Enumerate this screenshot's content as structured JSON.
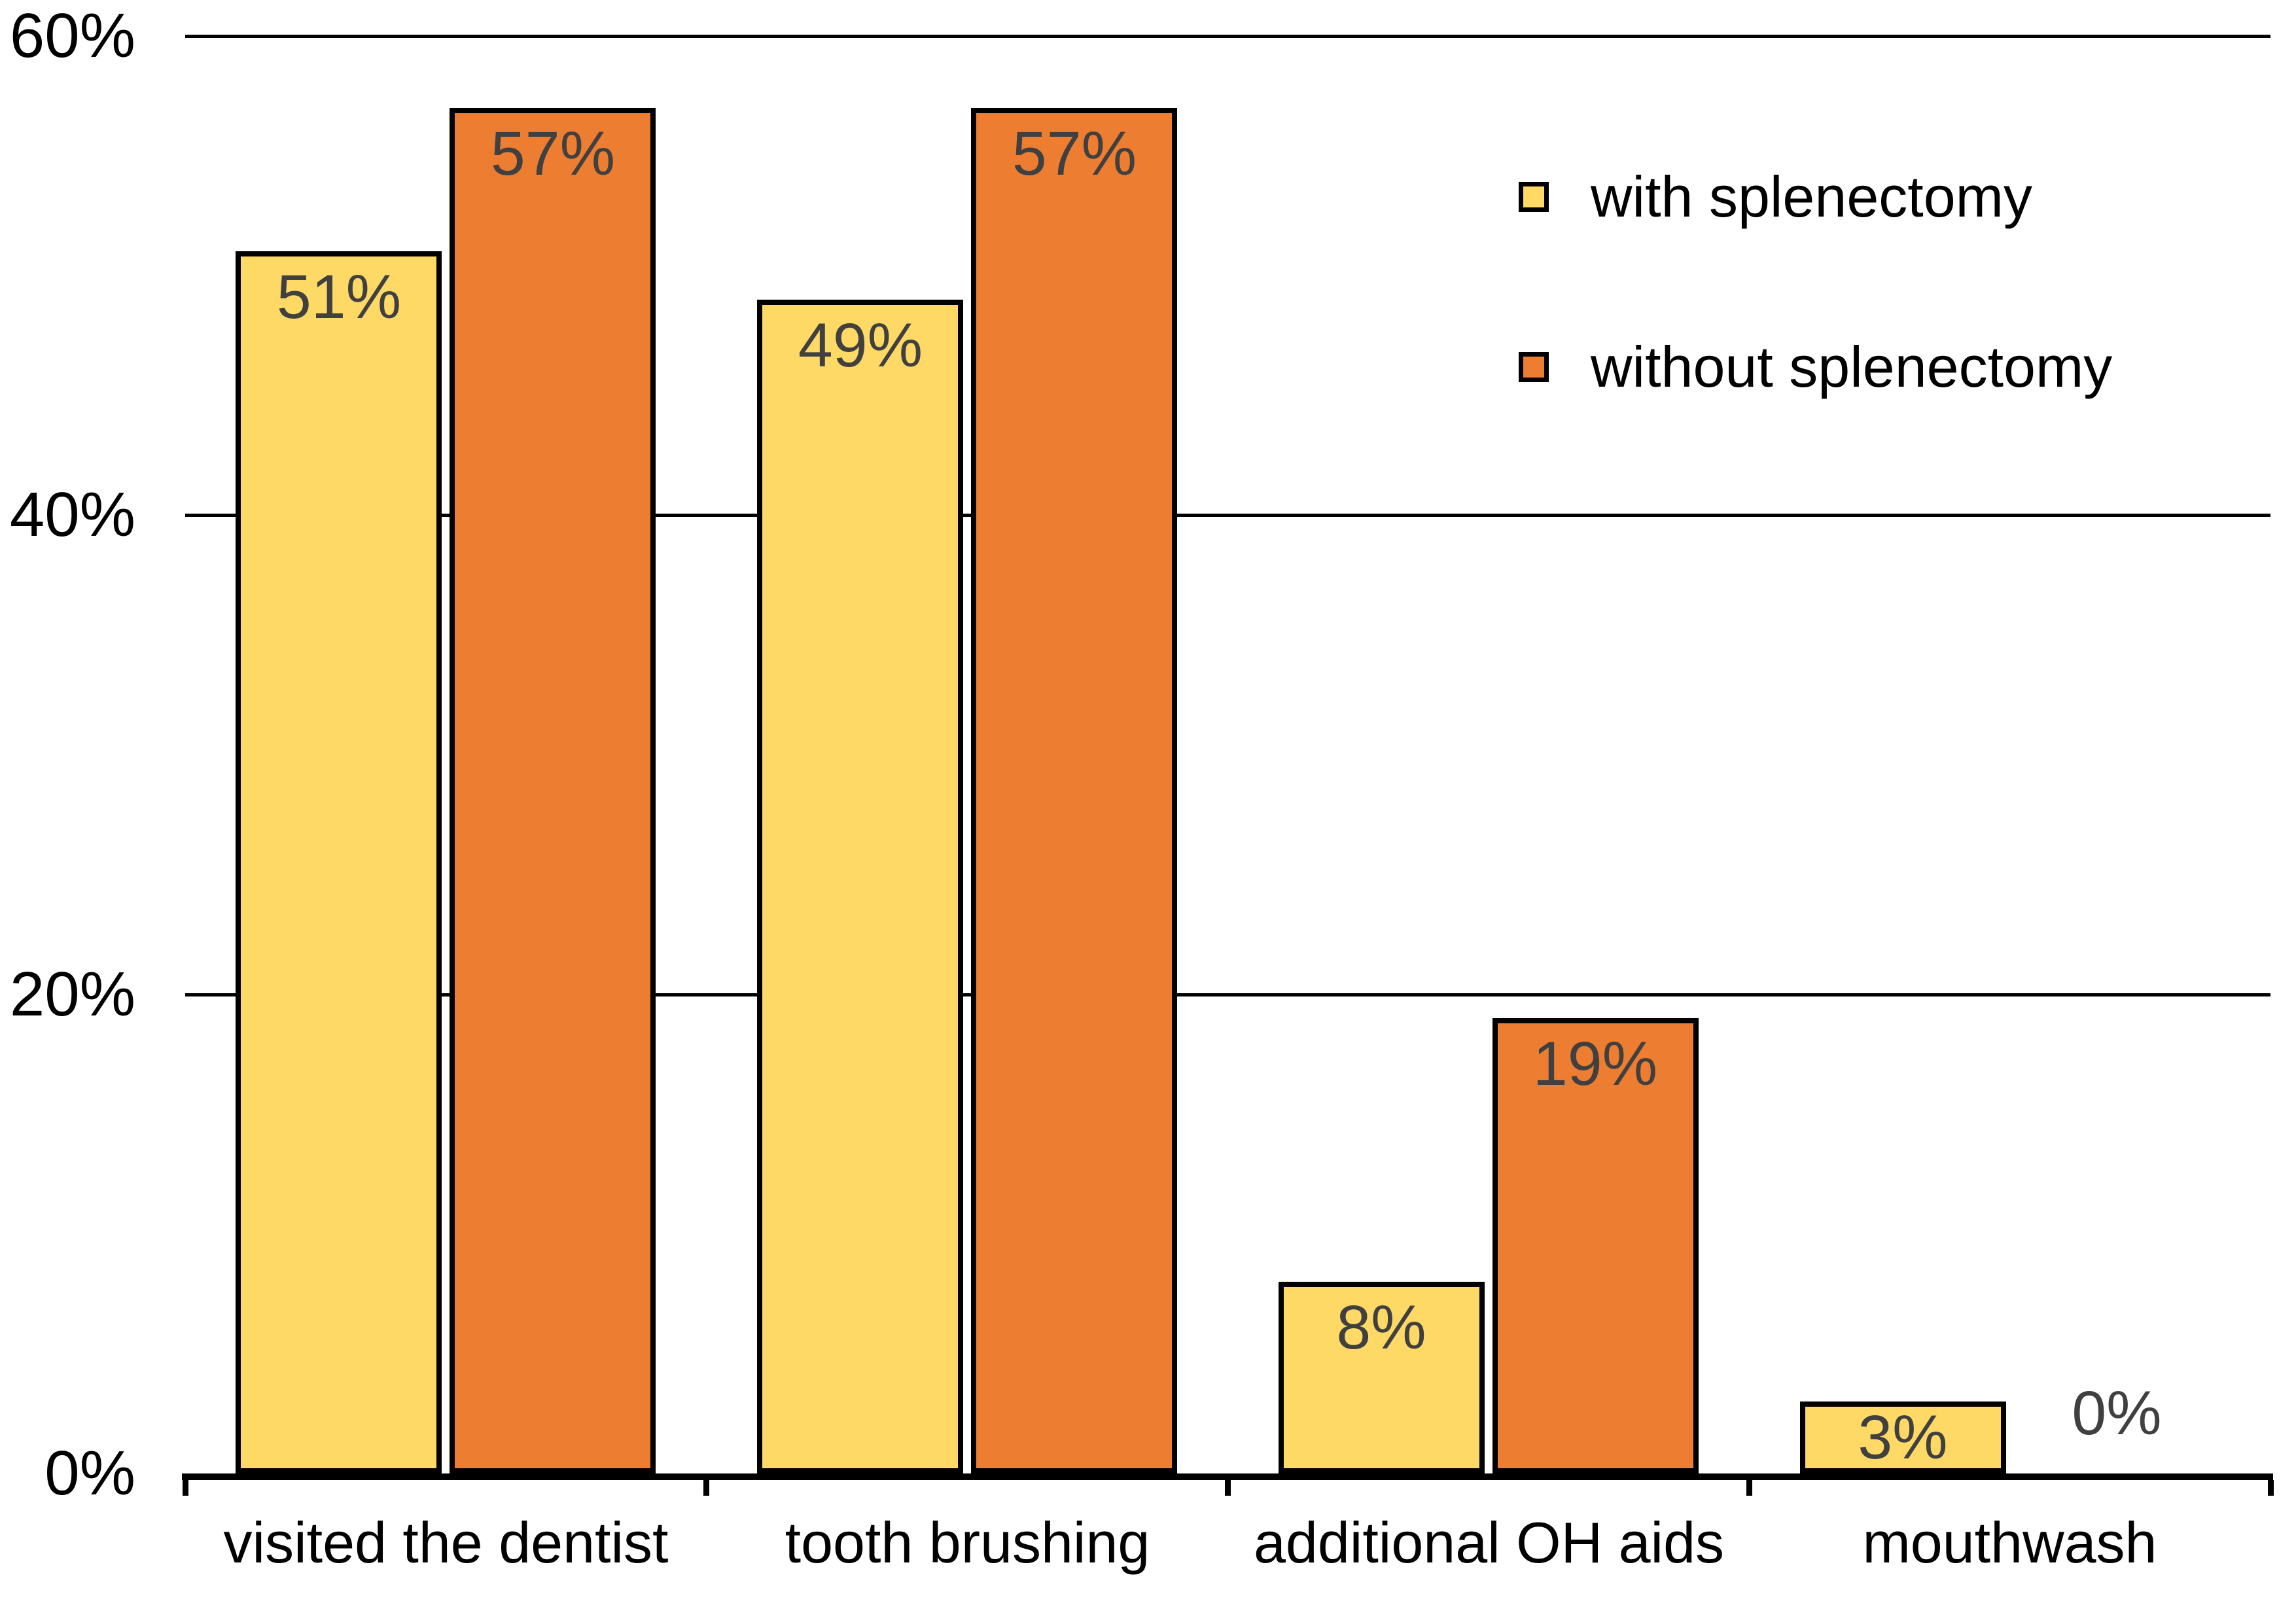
{
  "chart_data": {
    "type": "bar",
    "title": "",
    "categories": [
      "visited the dentist",
      "tooth brushing",
      "additional OH aids",
      "mouthwash"
    ],
    "series": [
      {
        "name": "with splenectomy",
        "color": "#FFD966",
        "values": [
          51,
          49,
          8,
          3
        ],
        "value_labels": [
          "51%",
          "49%",
          "8%",
          "3%"
        ]
      },
      {
        "name": "without splenectomy",
        "color": "#ED7D31",
        "values": [
          57,
          57,
          19,
          0
        ],
        "value_labels": [
          "57%",
          "57%",
          "19%",
          "0%"
        ]
      }
    ],
    "y_axis": {
      "min": 0,
      "max": 60,
      "tick_step": 20,
      "tick_values": [
        0,
        20,
        40,
        60
      ],
      "tick_labels": [
        "0%",
        "20%",
        "40%",
        "60%"
      ]
    },
    "xlabel": "",
    "ylabel": "",
    "grid": "horizontal",
    "legend_position": "upper right",
    "colors": {
      "background": "#FFFFFF",
      "bar_border": "#000000",
      "value_label": "#404040",
      "axis": "#000000",
      "text": "#000000"
    }
  }
}
